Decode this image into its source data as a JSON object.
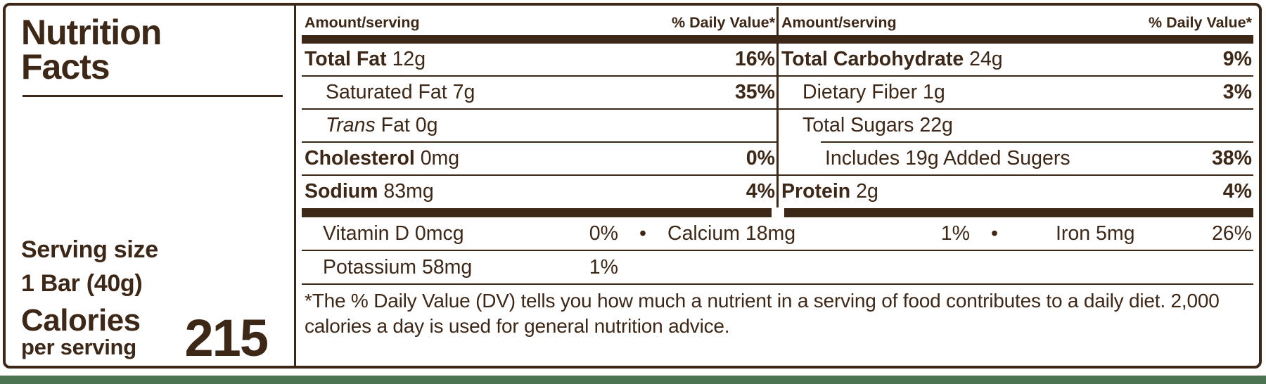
{
  "colors": {
    "brown": "#3D2818",
    "green": "#4C7453",
    "background": "#FFFFFF"
  },
  "left": {
    "title_line1": "Nutrition",
    "title_line2": "Facts",
    "serving_size_label": "Serving size",
    "serving_size_value": "1 Bar (40g)",
    "calories_label": "Calories",
    "calories_sublabel": "per serving",
    "calories_value": "215"
  },
  "columns": [
    {
      "header_amount": "Amount/serving",
      "header_dv": "% Daily Value*",
      "rows": [
        {
          "name": "Total Fat",
          "amount": "12g",
          "dv": "16%"
        },
        {
          "name": "Saturated Fat",
          "amount": "7g",
          "dv": "35%"
        },
        {
          "name_prefix": "Trans",
          "name": "Fat",
          "amount": "0g",
          "dv": ""
        },
        {
          "name": "Cholesterol",
          "amount": "0mg",
          "dv": "0%"
        },
        {
          "name": "Sodium",
          "amount": "83mg",
          "dv": "4%"
        }
      ]
    },
    {
      "header_amount": "Amount/serving",
      "header_dv": "% Daily Value*",
      "rows": [
        {
          "name": "Total Carbohydrate",
          "amount": "24g",
          "dv": "9%"
        },
        {
          "name": "Dietary Fiber",
          "amount": "1g",
          "dv": "3%"
        },
        {
          "name": "Total Sugars",
          "amount": "22g",
          "dv": ""
        },
        {
          "name": "Includes 19g Added Sugers",
          "amount": "",
          "dv": "38%"
        },
        {
          "name": "Protein",
          "amount": "2g",
          "dv": "4%"
        }
      ]
    }
  ],
  "micronutrients": {
    "separator": "•",
    "items": [
      {
        "name": "Vitamin D 0mcg",
        "dv": "0%"
      },
      {
        "name": "Calcium 18mg",
        "dv": "1%"
      },
      {
        "name": "Iron 5mg",
        "dv": "26%"
      }
    ],
    "potassium": {
      "name": "Potassium 58mg",
      "dv": "1%"
    }
  },
  "footnote": "*The % Daily Value (DV) tells you how much a nutrient in a serving of food contributes to a daily diet. 2,000 calories a day is used for general nutrition advice."
}
